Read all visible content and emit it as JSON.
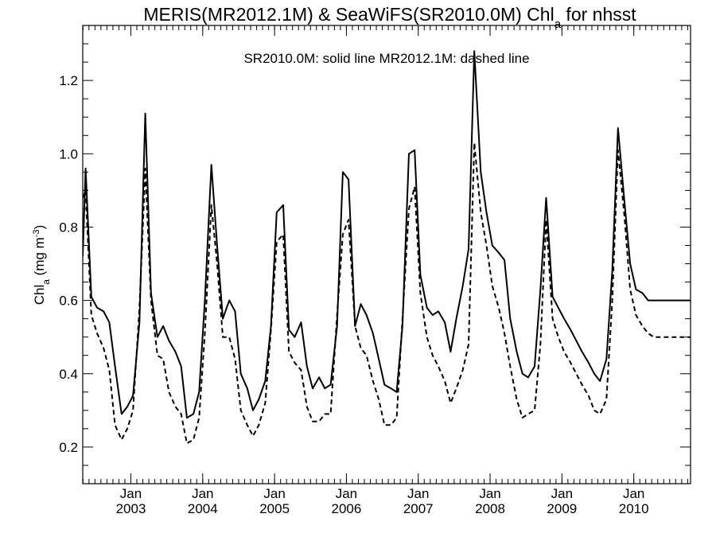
{
  "chart_data": {
    "type": "line",
    "title": {
      "main": "MERIS(MR2012.1M) & SeaWiFS(SR2010.0M)  Chl",
      "sub": "a",
      "suffix": " for nhsst"
    },
    "annotation": "SR2010.0M: solid line   MR2012.1M: dashed line",
    "ylabel": {
      "main": "Chl",
      "sub": "a",
      "units_pre": " (mg m",
      "units_sup": "-3",
      "units_post": ")"
    },
    "xlabel": "",
    "xlim": [
      2002.33,
      2010.79
    ],
    "ylim": [
      0.1,
      1.35
    ],
    "yticks": [
      0.2,
      0.4,
      0.6,
      0.8,
      1.0,
      1.2
    ],
    "ytick_labels": [
      "0.2",
      "0.4",
      "0.6",
      "0.8",
      "1.0",
      "1.2"
    ],
    "xticks": [
      2003,
      2004,
      2005,
      2006,
      2007,
      2008,
      2009,
      2010
    ],
    "xtick_month_label": "Jan",
    "xtick_year_labels": [
      "2003",
      "2004",
      "2005",
      "2006",
      "2007",
      "2008",
      "2009",
      "2010"
    ],
    "x_minor_interval_months": 1,
    "legend": "none",
    "series": [
      {
        "name": "SR2010.0M",
        "style": "solid",
        "color": "#000000",
        "x": [
          2002.33,
          2002.37,
          2002.45,
          2002.53,
          2002.62,
          2002.7,
          2002.78,
          2002.87,
          2002.95,
          2003.03,
          2003.12,
          2003.2,
          2003.28,
          2003.37,
          2003.45,
          2003.53,
          2003.62,
          2003.7,
          2003.78,
          2003.87,
          2003.95,
          2004.03,
          2004.12,
          2004.2,
          2004.28,
          2004.37,
          2004.45,
          2004.53,
          2004.62,
          2004.7,
          2004.78,
          2004.87,
          2004.95,
          2005.03,
          2005.12,
          2005.2,
          2005.28,
          2005.37,
          2005.45,
          2005.53,
          2005.62,
          2005.7,
          2005.78,
          2005.87,
          2005.95,
          2006.03,
          2006.12,
          2006.2,
          2006.28,
          2006.37,
          2006.45,
          2006.53,
          2006.62,
          2006.7,
          2006.78,
          2006.87,
          2006.95,
          2007.03,
          2007.12,
          2007.2,
          2007.28,
          2007.37,
          2007.45,
          2007.53,
          2007.62,
          2007.7,
          2007.78,
          2007.87,
          2007.95,
          2008.03,
          2008.12,
          2008.2,
          2008.28,
          2008.37,
          2008.45,
          2008.53,
          2008.62,
          2008.7,
          2008.78,
          2008.87,
          2008.95,
          2009.03,
          2009.12,
          2009.2,
          2009.28,
          2009.37,
          2009.45,
          2009.53,
          2009.62,
          2009.7,
          2009.78,
          2009.87,
          2009.95,
          2010.03,
          2010.12,
          2010.2,
          2010.28,
          2010.37,
          2010.45,
          2010.53,
          2010.62,
          2010.7,
          2010.79
        ],
        "y": [
          0.72,
          0.96,
          0.61,
          0.58,
          0.57,
          0.54,
          0.42,
          0.29,
          0.31,
          0.34,
          0.54,
          1.11,
          0.62,
          0.5,
          0.53,
          0.49,
          0.46,
          0.42,
          0.28,
          0.29,
          0.35,
          0.6,
          0.97,
          0.75,
          0.55,
          0.6,
          0.57,
          0.4,
          0.36,
          0.3,
          0.33,
          0.38,
          0.53,
          0.84,
          0.86,
          0.52,
          0.5,
          0.54,
          0.42,
          0.36,
          0.39,
          0.36,
          0.37,
          0.53,
          0.95,
          0.93,
          0.53,
          0.59,
          0.56,
          0.51,
          0.44,
          0.37,
          0.36,
          0.35,
          0.53,
          1.0,
          1.01,
          0.67,
          0.58,
          0.56,
          0.57,
          0.54,
          0.46,
          0.55,
          0.64,
          0.74,
          1.28,
          0.95,
          0.84,
          0.75,
          0.73,
          0.71,
          0.55,
          0.46,
          0.4,
          0.39,
          0.42,
          0.63,
          0.88,
          0.61,
          0.58,
          0.55,
          0.52,
          0.49,
          0.46,
          0.43,
          0.4,
          0.38,
          0.44,
          0.68,
          1.07,
          0.87,
          0.7,
          0.63,
          0.62,
          0.6,
          0.6,
          0.6,
          0.6,
          0.6,
          0.6,
          0.6,
          0.6
        ]
      },
      {
        "name": "MR2012.1M",
        "style": "dashed",
        "color": "#000000",
        "x": [
          2002.33,
          2002.37,
          2002.45,
          2002.53,
          2002.62,
          2002.7,
          2002.78,
          2002.87,
          2002.95,
          2003.03,
          2003.12,
          2003.2,
          2003.28,
          2003.37,
          2003.45,
          2003.53,
          2003.62,
          2003.7,
          2003.78,
          2003.87,
          2003.95,
          2004.03,
          2004.12,
          2004.2,
          2004.28,
          2004.37,
          2004.45,
          2004.53,
          2004.62,
          2004.7,
          2004.78,
          2004.87,
          2004.95,
          2005.03,
          2005.12,
          2005.2,
          2005.28,
          2005.37,
          2005.45,
          2005.53,
          2005.62,
          2005.7,
          2005.78,
          2005.87,
          2005.95,
          2006.03,
          2006.12,
          2006.2,
          2006.28,
          2006.37,
          2006.45,
          2006.53,
          2006.62,
          2006.7,
          2006.78,
          2006.87,
          2006.95,
          2007.03,
          2007.12,
          2007.2,
          2007.28,
          2007.37,
          2007.45,
          2007.53,
          2007.62,
          2007.7,
          2007.78,
          2007.87,
          2007.95,
          2008.03,
          2008.12,
          2008.2,
          2008.28,
          2008.37,
          2008.45,
          2008.53,
          2008.62,
          2008.7,
          2008.78,
          2008.87,
          2008.95,
          2009.03,
          2009.12,
          2009.2,
          2009.28,
          2009.37,
          2009.45,
          2009.53,
          2009.62,
          2009.7,
          2009.78,
          2009.87,
          2009.95,
          2010.03,
          2010.12,
          2010.2,
          2010.28,
          2010.37,
          2010.45,
          2010.53,
          2010.62,
          2010.7,
          2010.79
        ],
        "y": [
          0.88,
          0.9,
          0.56,
          0.51,
          0.47,
          0.41,
          0.26,
          0.22,
          0.25,
          0.3,
          0.58,
          0.96,
          0.6,
          0.45,
          0.44,
          0.35,
          0.31,
          0.29,
          0.21,
          0.22,
          0.28,
          0.51,
          0.86,
          0.7,
          0.5,
          0.5,
          0.44,
          0.3,
          0.26,
          0.23,
          0.26,
          0.32,
          0.52,
          0.76,
          0.78,
          0.46,
          0.43,
          0.41,
          0.31,
          0.27,
          0.27,
          0.29,
          0.29,
          0.56,
          0.78,
          0.82,
          0.53,
          0.47,
          0.45,
          0.38,
          0.33,
          0.26,
          0.26,
          0.28,
          0.55,
          0.85,
          0.91,
          0.62,
          0.5,
          0.45,
          0.42,
          0.38,
          0.32,
          0.36,
          0.41,
          0.48,
          1.03,
          0.84,
          0.75,
          0.64,
          0.58,
          0.51,
          0.42,
          0.33,
          0.28,
          0.29,
          0.3,
          0.48,
          0.82,
          0.55,
          0.5,
          0.46,
          0.43,
          0.4,
          0.37,
          0.34,
          0.3,
          0.29,
          0.33,
          0.6,
          1.01,
          0.83,
          0.63,
          0.56,
          0.53,
          0.51,
          0.5,
          0.5,
          0.5,
          0.5,
          0.5,
          0.5,
          0.5
        ]
      }
    ]
  }
}
